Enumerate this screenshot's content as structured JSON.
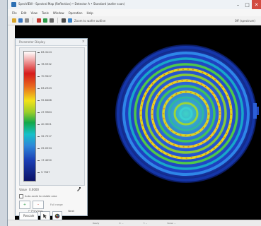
{
  "window": {
    "title": "SpecVIEW - Spectral Map (Reflection)  •  Detector A  •  Standard (wafer scan)",
    "buttons": [
      "–",
      "□",
      "✕"
    ]
  },
  "menu": [
    "File",
    "Edit",
    "View",
    "Tools",
    "Window",
    "Operation",
    "Help"
  ],
  "toolbar": {
    "zoom_text": "Zoom to wafer outline",
    "dropdown": "Off (spectrum)"
  },
  "panel": {
    "title": "Parameter Display",
    "close": "×",
    "scale_labels": [
      "83.3124",
      "78.5932",
      "70.9427",
      "63.2943",
      "55.6468",
      "47.9984",
      "40.3501",
      "32.7017",
      "25.0534",
      "17.4050",
      "9.7567"
    ],
    "value_label": "Value",
    "value_text": "0.0000",
    "checkbox_label": "Auto-scale to visible area",
    "ctrl_text": "Full range",
    "button_label": "Rescale",
    "foot_left": "← Previous",
    "foot_right": "Next"
  },
  "colors": {
    "canvas": "#000000",
    "ring_outer": "#1f5fd6",
    "ring_mid": "#7ed321",
    "ring_hot": "#f3e01c",
    "accent": "#2c6fb3"
  },
  "statusbar": [
    "Ready",
    "X: --",
    "Y: --",
    "Value: --"
  ]
}
